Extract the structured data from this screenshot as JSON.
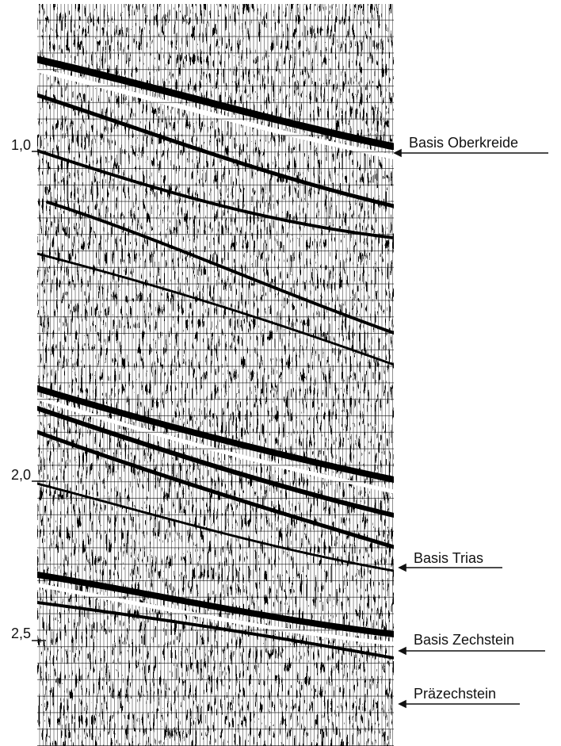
{
  "time_labels": [
    "1,0",
    "2,0",
    "2,5"
  ],
  "horizons": [
    "Basis Oberkreide",
    "Basis Trias",
    "Basis Zechstein",
    "Präzechstein"
  ]
}
